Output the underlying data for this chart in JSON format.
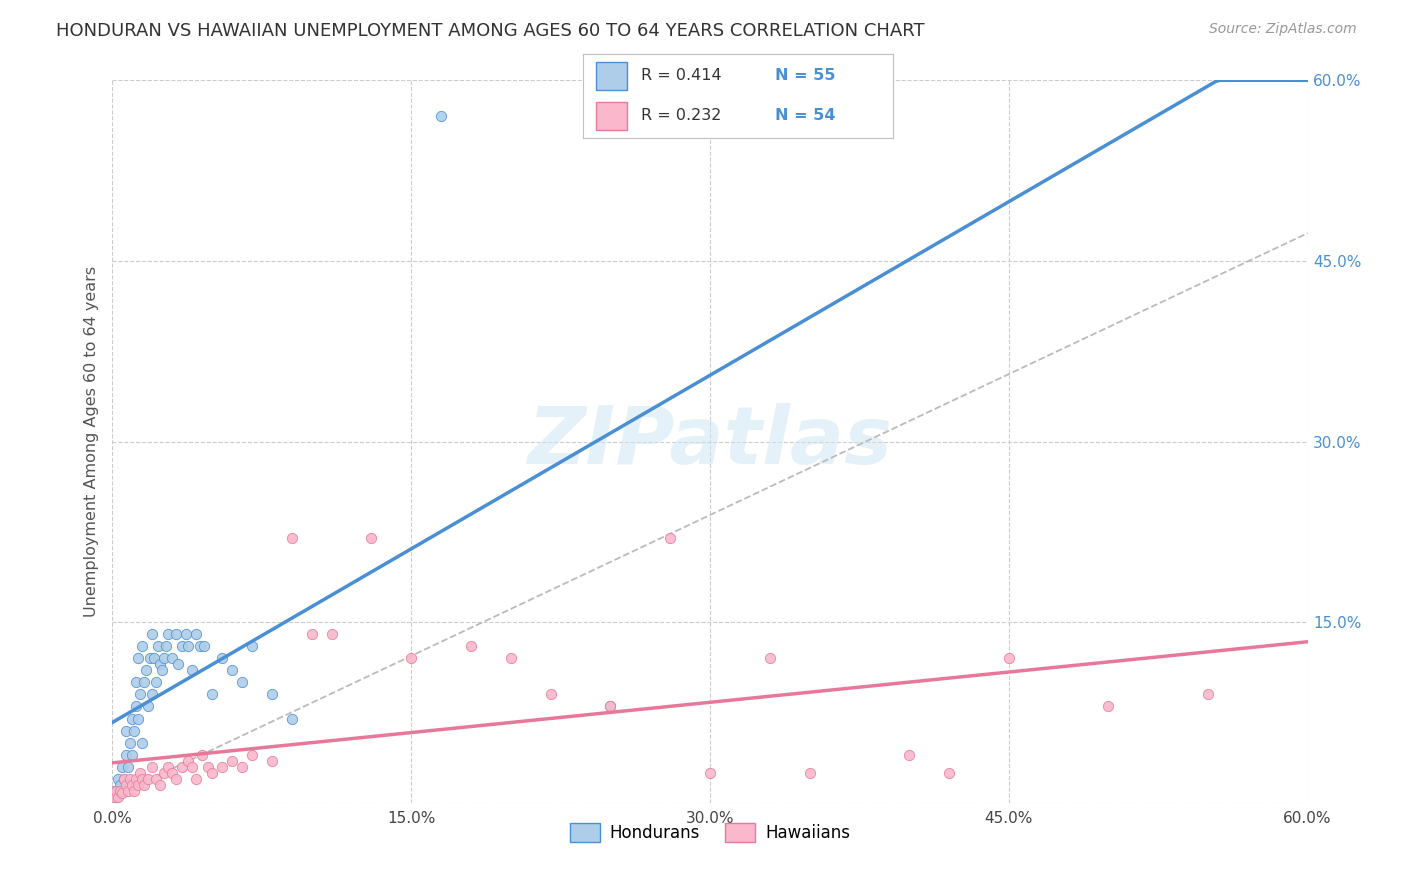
{
  "title": "HONDURAN VS HAWAIIAN UNEMPLOYMENT AMONG AGES 60 TO 64 YEARS CORRELATION CHART",
  "source": "Source: ZipAtlas.com",
  "ylabel": "Unemployment Among Ages 60 to 64 years",
  "xlim": [
    0.0,
    0.6
  ],
  "ylim": [
    0.0,
    0.6
  ],
  "xticks": [
    0.0,
    0.15,
    0.3,
    0.45,
    0.6
  ],
  "yticks_right": [
    0.15,
    0.3,
    0.45,
    0.6
  ],
  "xtick_labels": [
    "0.0%",
    "15.0%",
    "30.0%",
    "45.0%",
    "60.0%"
  ],
  "ytick_labels_right": [
    "15.0%",
    "30.0%",
    "45.0%",
    "60.0%"
  ],
  "honduran_scatter_color": "#aecde8",
  "hawaiian_scatter_color": "#f9b8cb",
  "honduran_line_color": "#4a8fd4",
  "hawaiian_line_color": "#e8789a",
  "dashed_line_color": "#bbbbbb",
  "watermark_color": "#cde4f2",
  "background_color": "#ffffff",
  "grid_color": "#cccccc",
  "title_color": "#333333",
  "axis_label_color": "#555555",
  "right_tick_color": "#4a8fd4",
  "legend_N_color": "#4a8fd4",
  "hon_x": [
    0.001,
    0.002,
    0.003,
    0.003,
    0.004,
    0.005,
    0.005,
    0.006,
    0.007,
    0.007,
    0.008,
    0.009,
    0.01,
    0.01,
    0.011,
    0.012,
    0.012,
    0.013,
    0.013,
    0.014,
    0.015,
    0.015,
    0.016,
    0.017,
    0.018,
    0.019,
    0.02,
    0.02,
    0.021,
    0.022,
    0.023,
    0.024,
    0.025,
    0.026,
    0.027,
    0.028,
    0.03,
    0.032,
    0.033,
    0.035,
    0.037,
    0.038,
    0.04,
    0.042,
    0.044,
    0.046,
    0.05,
    0.055,
    0.06,
    0.065,
    0.07,
    0.08,
    0.09,
    0.165,
    0.25
  ],
  "hon_y": [
    0.01,
    0.005,
    0.008,
    0.02,
    0.015,
    0.01,
    0.03,
    0.02,
    0.04,
    0.06,
    0.03,
    0.05,
    0.04,
    0.07,
    0.06,
    0.08,
    0.1,
    0.07,
    0.12,
    0.09,
    0.05,
    0.13,
    0.1,
    0.11,
    0.08,
    0.12,
    0.09,
    0.14,
    0.12,
    0.1,
    0.13,
    0.115,
    0.11,
    0.12,
    0.13,
    0.14,
    0.12,
    0.14,
    0.115,
    0.13,
    0.14,
    0.13,
    0.11,
    0.14,
    0.13,
    0.13,
    0.09,
    0.12,
    0.11,
    0.1,
    0.13,
    0.09,
    0.07,
    0.57,
    0.08
  ],
  "haw_x": [
    0.001,
    0.002,
    0.003,
    0.004,
    0.005,
    0.006,
    0.007,
    0.008,
    0.009,
    0.01,
    0.011,
    0.012,
    0.013,
    0.014,
    0.015,
    0.016,
    0.018,
    0.02,
    0.022,
    0.024,
    0.026,
    0.028,
    0.03,
    0.032,
    0.035,
    0.038,
    0.04,
    0.042,
    0.045,
    0.048,
    0.05,
    0.055,
    0.06,
    0.065,
    0.07,
    0.08,
    0.09,
    0.1,
    0.11,
    0.13,
    0.15,
    0.18,
    0.2,
    0.22,
    0.25,
    0.28,
    0.3,
    0.33,
    0.35,
    0.4,
    0.42,
    0.45,
    0.5,
    0.55
  ],
  "haw_y": [
    0.005,
    0.01,
    0.005,
    0.01,
    0.008,
    0.02,
    0.015,
    0.01,
    0.02,
    0.015,
    0.01,
    0.02,
    0.015,
    0.025,
    0.02,
    0.015,
    0.02,
    0.03,
    0.02,
    0.015,
    0.025,
    0.03,
    0.025,
    0.02,
    0.03,
    0.035,
    0.03,
    0.02,
    0.04,
    0.03,
    0.025,
    0.03,
    0.035,
    0.03,
    0.04,
    0.035,
    0.22,
    0.14,
    0.14,
    0.22,
    0.12,
    0.13,
    0.12,
    0.09,
    0.08,
    0.22,
    0.025,
    0.12,
    0.025,
    0.04,
    0.025,
    0.12,
    0.08,
    0.09
  ]
}
